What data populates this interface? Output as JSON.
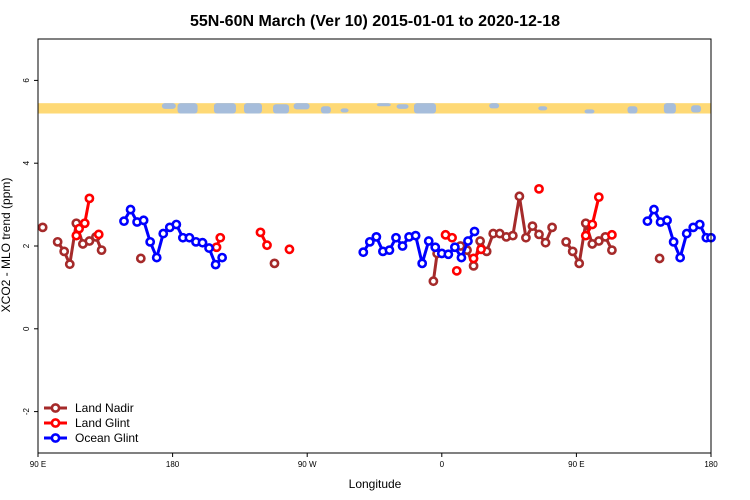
{
  "chart_data": {
    "type": "line",
    "title": "55N-60N March (Ver 10)   2015-01-01 to 2020-12-18",
    "xlabel": "Longitude",
    "ylabel": "XCO2 - MLO trend (ppm)",
    "xlim": [
      -90,
      270
    ],
    "ylim": [
      -3,
      7
    ],
    "x_ticks": [
      {
        "value": -90,
        "label": "90 E"
      },
      {
        "value": -18,
        "label": "180"
      },
      {
        "value": 54,
        "label": "90 W"
      },
      {
        "value": 126,
        "label": "0"
      },
      {
        "value": 198,
        "label": "90 E"
      },
      {
        "value": 270,
        "label": "180"
      }
    ],
    "y_ticks": [
      {
        "value": -2,
        "label": "-2"
      },
      {
        "value": 0,
        "label": "0"
      },
      {
        "value": 2,
        "label": "2"
      },
      {
        "value": 4,
        "label": "4"
      },
      {
        "value": 6,
        "label": "6"
      }
    ],
    "map_strip": {
      "y_range": [
        5.2,
        5.45
      ],
      "ocean_color": "#a6bddb",
      "land_color": "#fed976"
    },
    "legend_position": "bottom-left",
    "series": [
      {
        "name": "Land Nadir",
        "color": "#a52a2a",
        "segments": [
          [
            [
              -87.5,
              2.45
            ]
          ],
          [
            [
              -79.5,
              2.1
            ],
            [
              -76,
              1.87
            ],
            [
              -73,
              1.56
            ],
            [
              -69.5,
              2.55
            ],
            [
              -66,
              2.05
            ],
            [
              -62.5,
              2.12
            ],
            [
              -59,
              2.22
            ],
            [
              -56,
              1.9
            ]
          ],
          [
            [
              -35,
              1.7
            ]
          ],
          [
            [
              36.5,
              1.58
            ]
          ],
          [
            [
              121.5,
              1.15
            ],
            [
              123.5,
              1.82
            ]
          ],
          [
            [
              136,
              2.0
            ],
            [
              139.5,
              1.9
            ],
            [
              143,
              1.52
            ],
            [
              146.5,
              2.12
            ],
            [
              150,
              1.87
            ],
            [
              153.5,
              2.3
            ],
            [
              157,
              2.3
            ],
            [
              160.5,
              2.22
            ],
            [
              164,
              2.25
            ],
            [
              167.5,
              3.2
            ],
            [
              171,
              2.2
            ],
            [
              174.5,
              2.48
            ],
            [
              178,
              2.28
            ],
            [
              181.5,
              2.08
            ],
            [
              185,
              2.45
            ]
          ],
          [
            [
              192.5,
              2.1
            ],
            [
              196,
              1.87
            ],
            [
              199.5,
              1.58
            ],
            [
              203,
              2.55
            ],
            [
              206.5,
              2.05
            ],
            [
              210,
              2.12
            ],
            [
              213.5,
              2.22
            ],
            [
              217,
              1.9
            ]
          ],
          [
            [
              242.5,
              1.7
            ]
          ]
        ]
      },
      {
        "name": "Land Glint",
        "color": "#ff0000",
        "segments": [
          [
            [
              -69.5,
              2.25
            ],
            [
              -68,
              2.42
            ],
            [
              -65,
              2.55
            ],
            [
              -62.5,
              3.15
            ]
          ],
          [
            [
              -57.5,
              2.28
            ]
          ],
          [
            [
              5.5,
              1.97
            ],
            [
              7.5,
              2.2
            ]
          ],
          [
            [
              29,
              2.33
            ],
            [
              32.5,
              2.02
            ]
          ],
          [
            [
              44.5,
              1.92
            ]
          ],
          [
            [
              128,
              2.27
            ],
            [
              131.5,
              2.2
            ]
          ],
          [
            [
              134,
              1.4
            ]
          ],
          [
            [
              143,
              1.7
            ],
            [
              147,
              1.92
            ]
          ],
          [
            [
              178,
              3.38
            ]
          ],
          [
            [
              203,
              2.25
            ],
            [
              206.5,
              2.52
            ],
            [
              210,
              3.18
            ]
          ],
          [
            [
              217,
              2.27
            ]
          ]
        ]
      },
      {
        "name": "Ocean Glint",
        "color": "#0000ff",
        "segments": [
          [
            [
              -44,
              2.6
            ],
            [
              -40.5,
              2.88
            ],
            [
              -37,
              2.58
            ],
            [
              -33.5,
              2.62
            ],
            [
              -30,
              2.1
            ],
            [
              -26.5,
              1.72
            ],
            [
              -23,
              2.3
            ],
            [
              -19.5,
              2.45
            ],
            [
              -16,
              2.52
            ],
            [
              -12.5,
              2.2
            ],
            [
              -9,
              2.2
            ],
            [
              -5.5,
              2.1
            ],
            [
              -2,
              2.08
            ],
            [
              1.5,
              1.95
            ],
            [
              5,
              1.55
            ],
            [
              8.5,
              1.72
            ]
          ],
          [
            [
              84,
              1.85
            ],
            [
              87.5,
              2.1
            ],
            [
              91,
              2.22
            ],
            [
              94.5,
              1.87
            ],
            [
              98,
              1.9
            ],
            [
              101.5,
              2.2
            ],
            [
              105,
              2.0
            ],
            [
              108.5,
              2.22
            ],
            [
              112,
              2.25
            ],
            [
              115.5,
              1.58
            ],
            [
              119,
              2.12
            ],
            [
              122.5,
              1.97
            ],
            [
              126,
              1.82
            ],
            [
              129.5,
              1.8
            ],
            [
              133,
              1.97
            ],
            [
              136.5,
              1.72
            ],
            [
              140,
              2.12
            ],
            [
              143.5,
              2.35
            ]
          ],
          [
            [
              236,
              2.6
            ],
            [
              239.5,
              2.88
            ],
            [
              243,
              2.58
            ],
            [
              246.5,
              2.62
            ],
            [
              250,
              2.1
            ],
            [
              253.5,
              1.72
            ],
            [
              257,
              2.3
            ],
            [
              260.5,
              2.45
            ],
            [
              264,
              2.52
            ],
            [
              267.5,
              2.2
            ],
            [
              270,
              2.2
            ]
          ]
        ]
      }
    ]
  }
}
